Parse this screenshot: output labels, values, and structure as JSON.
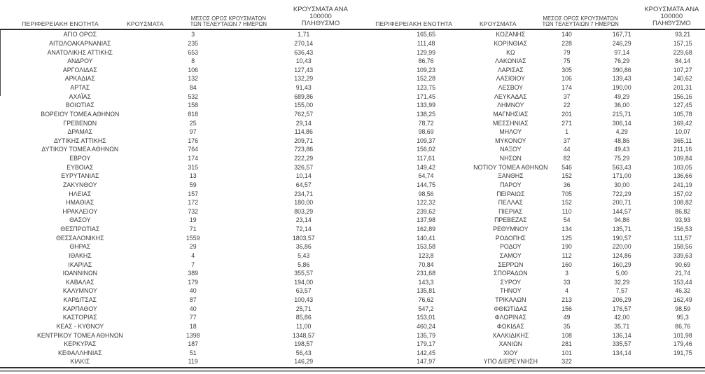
{
  "colors": {
    "text": "#3a3a3a",
    "rule_dark": "#2e2e2e",
    "rule_light": "#ababab"
  },
  "table": {
    "headers": {
      "region": "ΠΕΡΙΦΕΡΕΙΑΚΗ ΕΝΟΤΗΤΑ",
      "cases": "ΚΡΟΥΣΜΑΤΑ",
      "avg7_line1": "ΜΕΣΟΣ ΟΡΟΣ ΚΡΟΥΣΜΑΤΩΝ",
      "avg7_line2": "ΤΩΝ ΤΕΛΕΥΤΑΙΩΝ 7 ΗΜΕΡΩΝ",
      "per100k_line1": "ΚΡΟΥΣΜΑΤΑ ΑΝΑ 100000",
      "per100k_line2": "ΠΛΗΘΥΣΜΟ"
    },
    "halves": [
      {
        "rows": [
          [
            "ΑΓΙΟ ΟΡΟΣ",
            "3",
            "1,71",
            "165,65"
          ],
          [
            "ΑΙΤΩΛΟΑΚΑΡΝΑΝΙΑΣ",
            "235",
            "270,14",
            "111,48"
          ],
          [
            "ΑΝΑΤΟΛΙΚΗΣ ΑΤΤΙΚΗΣ",
            "653",
            "636,43",
            "129,99"
          ],
          [
            "ΑΝΔΡΟΥ",
            "8",
            "10,43",
            "86,76"
          ],
          [
            "ΑΡΓΟΛΙΔΑΣ",
            "106",
            "127,43",
            "109,23"
          ],
          [
            "ΑΡΚΑΔΙΑΣ",
            "132",
            "132,29",
            "152,28"
          ],
          [
            "ΑΡΤΑΣ",
            "84",
            "91,43",
            "123,75"
          ],
          [
            "ΑΧΑΪΑΣ",
            "532",
            "689,86",
            "171,45"
          ],
          [
            "ΒΟΙΩΤΙΑΣ",
            "158",
            "155,00",
            "133,99"
          ],
          [
            "ΒΟΡΕΙΟΥ ΤΟΜΕΑ ΑΘΗΝΩΝ",
            "818",
            "762,57",
            "138,25"
          ],
          [
            "ΓΡΕΒΕΝΩΝ",
            "25",
            "29,14",
            "78,72"
          ],
          [
            "ΔΡΑΜΑΣ",
            "97",
            "114,86",
            "98,69"
          ],
          [
            "ΔΥΤΙΚΗΣ ΑΤΤΙΚΗΣ",
            "176",
            "209,71",
            "109,37"
          ],
          [
            "ΔΥΤΙΚΟΥ ΤΟΜΕΑ ΑΘΗΝΩΝ",
            "764",
            "723,86",
            "156,02"
          ],
          [
            "ΕΒΡΟΥ",
            "174",
            "222,29",
            "117,61"
          ],
          [
            "ΕΥΒΟΙΑΣ",
            "315",
            "326,57",
            "149,42"
          ],
          [
            "ΕΥΡΥΤΑΝΙΑΣ",
            "13",
            "10,14",
            "64,74"
          ],
          [
            "ΖΑΚΥΝΘΟΥ",
            "59",
            "64,57",
            "144,75"
          ],
          [
            "ΗΛΕΙΑΣ",
            "157",
            "234,71",
            "98,56"
          ],
          [
            "ΗΜΑΘΙΑΣ",
            "172",
            "180,00",
            "122,32"
          ],
          [
            "ΗΡΑΚΛΕΙΟΥ",
            "732",
            "803,29",
            "239,62"
          ],
          [
            "ΘΑΣΟΥ",
            "19",
            "23,14",
            "137,98"
          ],
          [
            "ΘΕΣΠΡΩΤΙΑΣ",
            "71",
            "72,14",
            "162,89"
          ],
          [
            "ΘΕΣΣΑΛΟΝΙΚΗΣ",
            "1559",
            "1803,57",
            "140,41"
          ],
          [
            "ΘΗΡΑΣ",
            "29",
            "36,86",
            "153,58"
          ],
          [
            "ΙΘΑΚΗΣ",
            "4",
            "5,43",
            "123,8"
          ],
          [
            "ΙΚΑΡΙΑΣ",
            "7",
            "5,86",
            "70,84"
          ],
          [
            "ΙΩΑΝΝΙΝΩΝ",
            "389",
            "355,57",
            "231,68"
          ],
          [
            "ΚΑΒΑΛΑΣ",
            "179",
            "194,00",
            "143,3"
          ],
          [
            "ΚΑΛΥΜΝΟΥ",
            "40",
            "63,57",
            "135,81"
          ],
          [
            "ΚΑΡΔΙΤΣΑΣ",
            "87",
            "100,43",
            "76,62"
          ],
          [
            "ΚΑΡΠΑΘΟΥ",
            "40",
            "25,71",
            "547,2"
          ],
          [
            "ΚΑΣΤΟΡΙΑΣ",
            "77",
            "85,86",
            "153,01"
          ],
          [
            "ΚΕΑΣ - ΚΥΘΝΟΥ",
            "18",
            "11,00",
            "460,24"
          ],
          [
            "ΚΕΝΤΡΙΚΟΥ ΤΟΜΕΑ ΑΘΗΝΩΝ",
            "1398",
            "1348,57",
            "135,79"
          ],
          [
            "ΚΕΡΚΥΡΑΣ",
            "187",
            "198,57",
            "179,17"
          ],
          [
            "ΚΕΦΑΛΛΗΝΙΑΣ",
            "51",
            "56,43",
            "142,45"
          ],
          [
            "ΚΙΛΚΙΣ",
            "119",
            "146,29",
            "147,97"
          ]
        ]
      },
      {
        "rows": [
          [
            "ΚΟΖΑΝΗΣ",
            "140",
            "167,71",
            "93,21"
          ],
          [
            "ΚΟΡΙΝΘΙΑΣ",
            "228",
            "246,29",
            "157,15"
          ],
          [
            "ΚΩ",
            "79",
            "97,14",
            "229,68"
          ],
          [
            "ΛΑΚΩΝΙΑΣ",
            "75",
            "76,29",
            "84,14"
          ],
          [
            "ΛΑΡΙΣΑΣ",
            "305",
            "390,86",
            "107,27"
          ],
          [
            "ΛΑΣΙΘΙΟΥ",
            "106",
            "139,43",
            "140,62"
          ],
          [
            "ΛΕΣΒΟΥ",
            "174",
            "190,00",
            "201,31"
          ],
          [
            "ΛΕΥΚΑΔΑΣ",
            "37",
            "49,29",
            "156,16"
          ],
          [
            "ΛΗΜΝΟΥ",
            "22",
            "36,00",
            "127,45"
          ],
          [
            "ΜΑΓΝΗΣΙΑΣ",
            "201",
            "215,71",
            "105,78"
          ],
          [
            "ΜΕΣΣΗΝΙΑΣ",
            "271",
            "306,14",
            "169,42"
          ],
          [
            "ΜΗΛΟΥ",
            "1",
            "4,29",
            "10,07"
          ],
          [
            "ΜΥΚΟΝΟΥ",
            "37",
            "48,86",
            "365,11"
          ],
          [
            "ΝΑΞΟΥ",
            "44",
            "49,43",
            "211,16"
          ],
          [
            "ΝΗΣΩΝ",
            "82",
            "75,29",
            "109,84"
          ],
          [
            "ΝΟΤΙΟΥ ΤΟΜΕΑ ΑΘΗΝΩΝ",
            "546",
            "563,43",
            "103,05"
          ],
          [
            "ΞΑΝΘΗΣ",
            "152",
            "171,00",
            "136,66"
          ],
          [
            "ΠΑΡΟΥ",
            "36",
            "30,00",
            "241,19"
          ],
          [
            "ΠΕΙΡΑΙΩΣ",
            "705",
            "722,29",
            "157,02"
          ],
          [
            "ΠΕΛΛΑΣ",
            "152",
            "200,71",
            "108,82"
          ],
          [
            "ΠΙΕΡΙΑΣ",
            "110",
            "144,57",
            "86,82"
          ],
          [
            "ΠΡΕΒΕΖΑΣ",
            "54",
            "94,86",
            "93,93"
          ],
          [
            "ΡΕΘΥΜΝΟΥ",
            "134",
            "135,71",
            "156,53"
          ],
          [
            "ΡΟΔΟΠΗΣ",
            "125",
            "190,57",
            "111,57"
          ],
          [
            "ΡΟΔΟΥ",
            "190",
            "220,00",
            "158,56"
          ],
          [
            "ΣΑΜΟΥ",
            "112",
            "124,86",
            "339,63"
          ],
          [
            "ΣΕΡΡΩΝ",
            "160",
            "160,29",
            "90,69"
          ],
          [
            "ΣΠΟΡΑΔΩΝ",
            "3",
            "5,00",
            "21,74"
          ],
          [
            "ΣΥΡΟΥ",
            "33",
            "32,29",
            "153,44"
          ],
          [
            "ΤΗΝΟΥ",
            "4",
            "7,57",
            "46,32"
          ],
          [
            "ΤΡΙΚΑΛΩΝ",
            "213",
            "206,29",
            "162,49"
          ],
          [
            "ΦΘΙΩΤΙΔΑΣ",
            "156",
            "176,57",
            "98,59"
          ],
          [
            "ΦΛΩΡΙΝΑΣ",
            "49",
            "42,00",
            "95,3"
          ],
          [
            "ΦΩΚΙΔΑΣ",
            "35",
            "35,71",
            "86,76"
          ],
          [
            "ΧΑΛΚΙΔΙΚΗΣ",
            "108",
            "136,14",
            "101,98"
          ],
          [
            "ΧΑΝΙΩΝ",
            "281",
            "335,57",
            "179,46"
          ],
          [
            "ΧΙΟΥ",
            "101",
            "134,14",
            "191,75"
          ],
          [
            "ΥΠΟ ΔΙΕΡΕΥΝΗΣΗ",
            "322",
            "",
            ""
          ]
        ]
      }
    ]
  }
}
